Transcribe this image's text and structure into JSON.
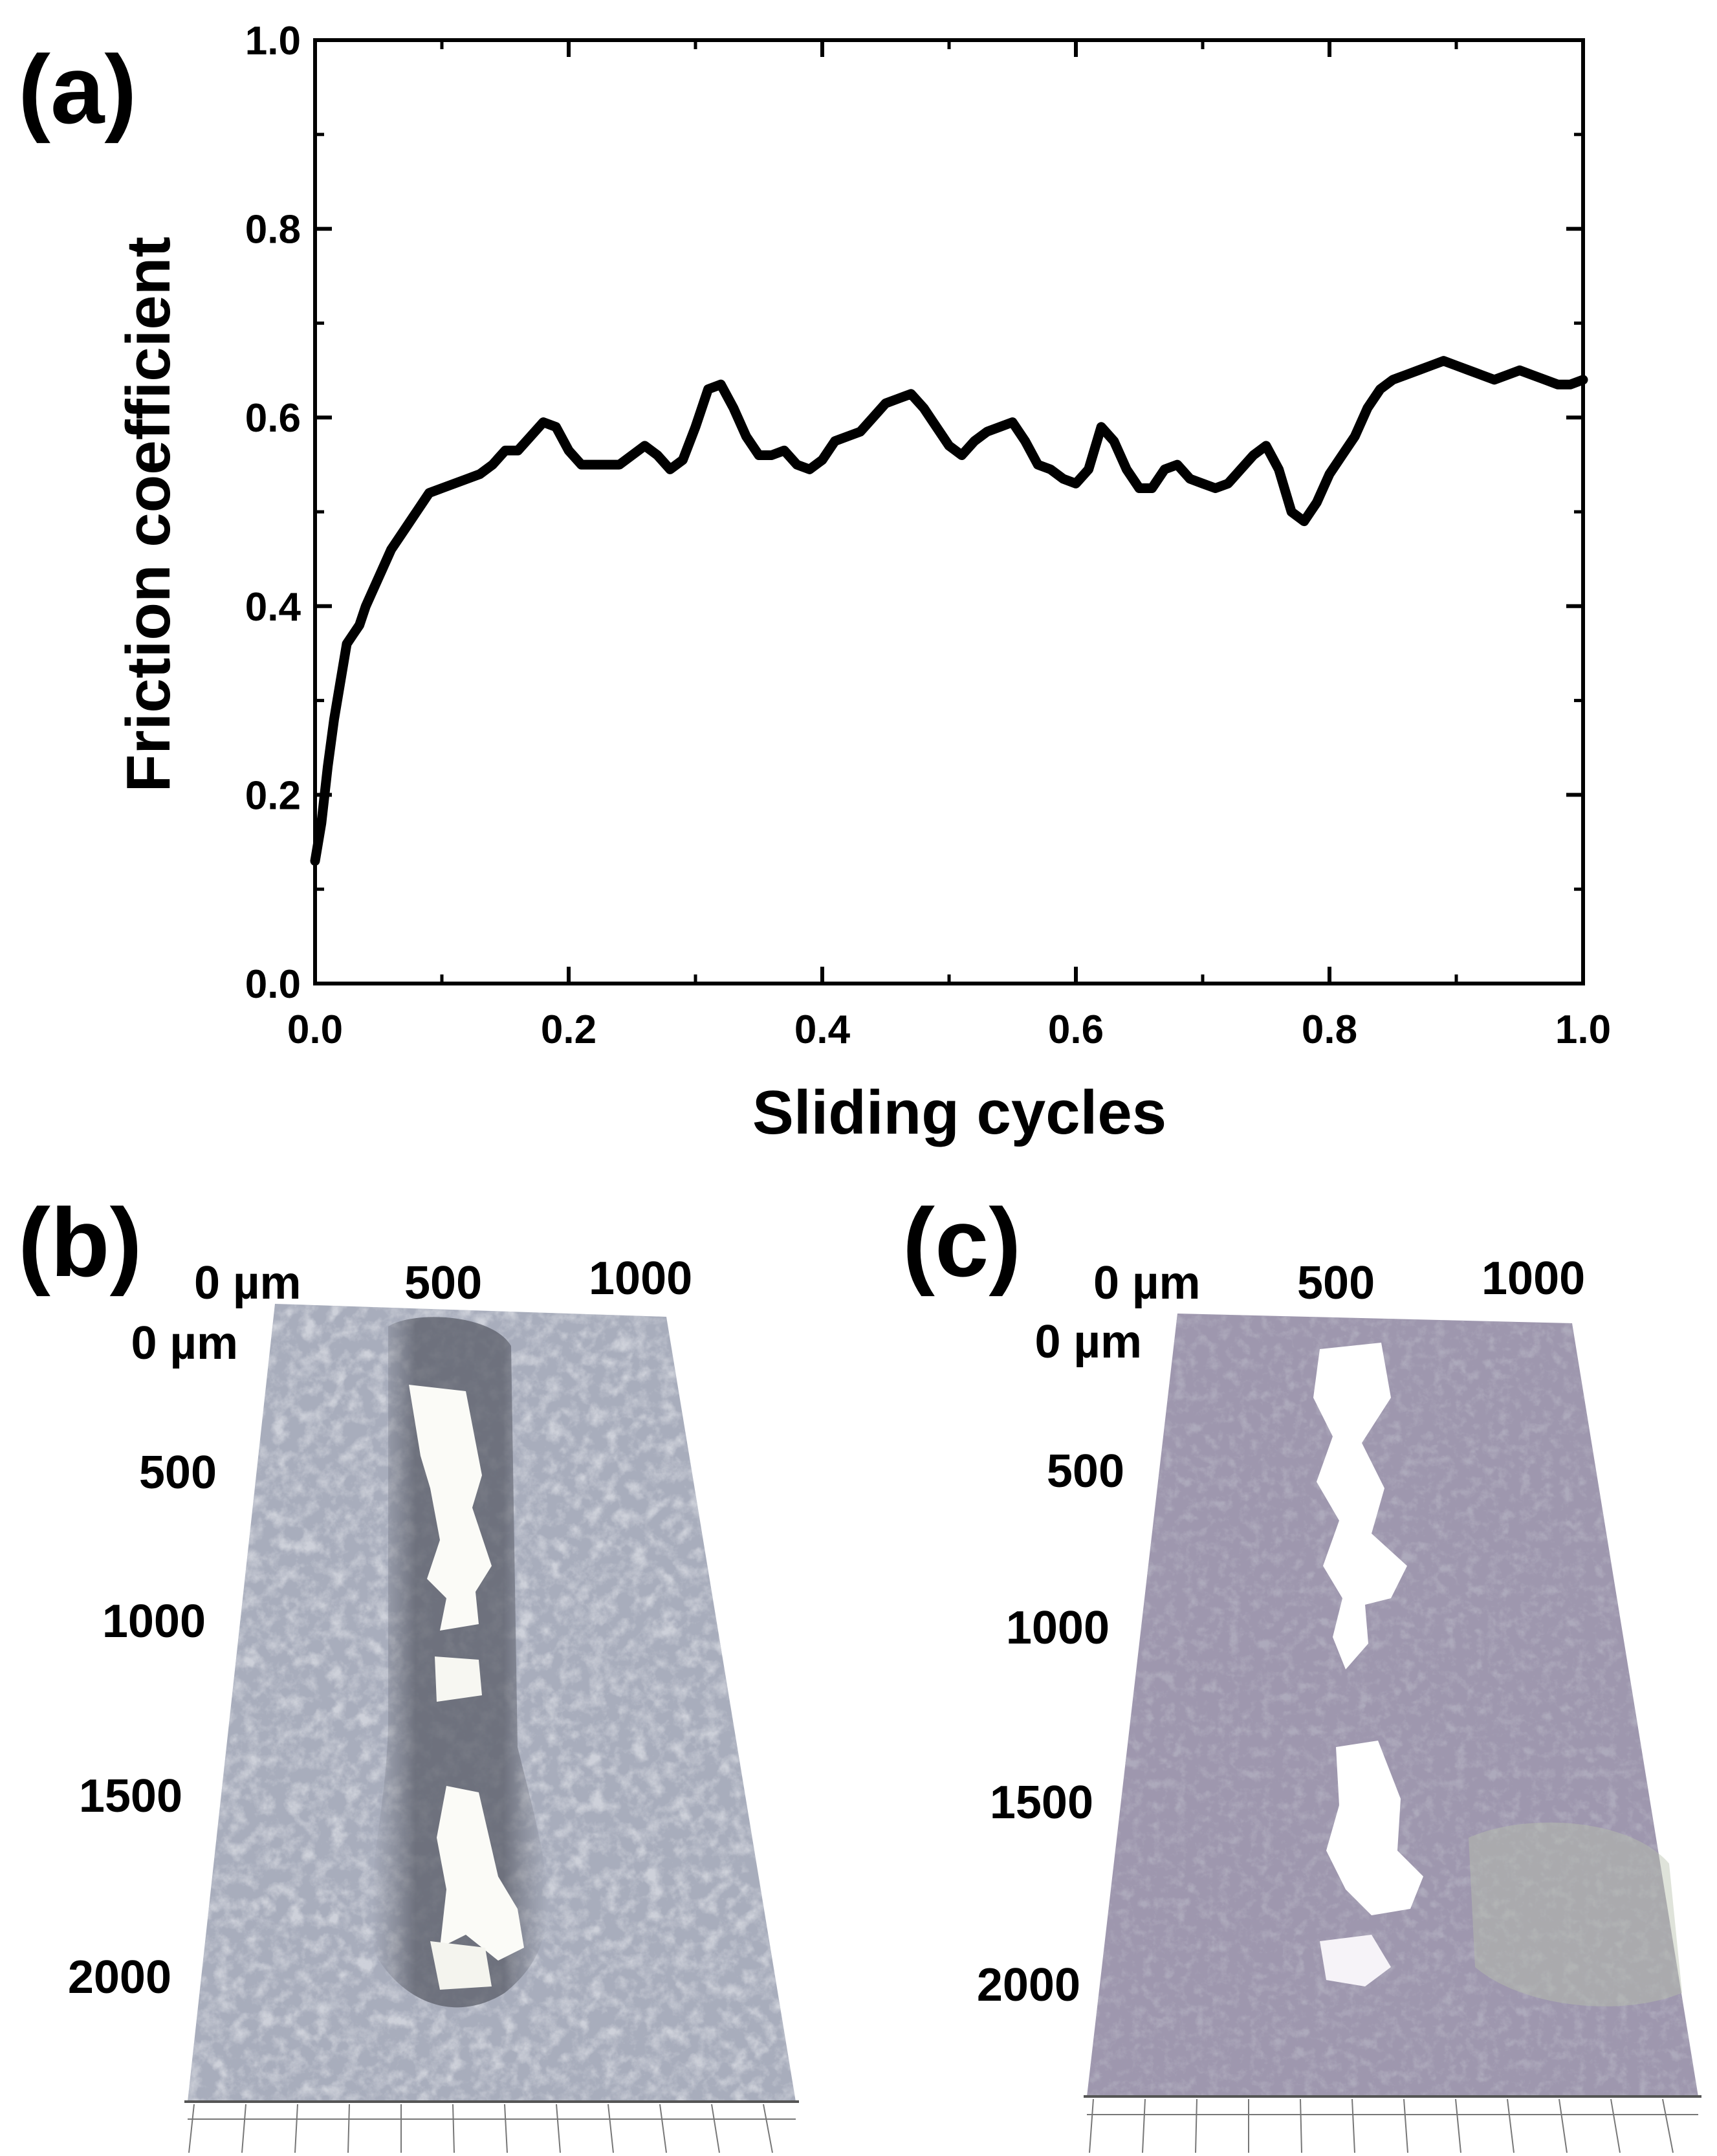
{
  "figure": {
    "panels": [
      {
        "label": "(a)"
      },
      {
        "label": "(b)"
      },
      {
        "label": "(c)"
      }
    ]
  },
  "chart_data": {
    "type": "line",
    "title": "",
    "xlabel": "Sliding cycles",
    "ylabel": "Friction coefficient",
    "xlim": [
      0.0,
      1.0
    ],
    "ylim": [
      0.0,
      1.0
    ],
    "xticks": [
      "0.0",
      "0.2",
      "0.4",
      "0.6",
      "0.8",
      "1.0"
    ],
    "yticks": [
      "0.0",
      "0.2",
      "0.4",
      "0.6",
      "0.8",
      "1.0"
    ],
    "grid": false,
    "series": [
      {
        "name": "Friction coefficient",
        "color": "#000000",
        "x": [
          0.0,
          0.005,
          0.01,
          0.015,
          0.02,
          0.025,
          0.03,
          0.035,
          0.04,
          0.05,
          0.06,
          0.07,
          0.08,
          0.09,
          0.1,
          0.12,
          0.13,
          0.14,
          0.15,
          0.16,
          0.17,
          0.18,
          0.19,
          0.2,
          0.21,
          0.22,
          0.24,
          0.26,
          0.27,
          0.28,
          0.29,
          0.3,
          0.31,
          0.32,
          0.33,
          0.34,
          0.35,
          0.36,
          0.37,
          0.38,
          0.39,
          0.4,
          0.41,
          0.42,
          0.43,
          0.44,
          0.45,
          0.46,
          0.47,
          0.48,
          0.49,
          0.5,
          0.51,
          0.52,
          0.53,
          0.54,
          0.55,
          0.56,
          0.57,
          0.58,
          0.59,
          0.6,
          0.61,
          0.62,
          0.63,
          0.64,
          0.65,
          0.66,
          0.67,
          0.68,
          0.69,
          0.7,
          0.71,
          0.72,
          0.73,
          0.74,
          0.75,
          0.76,
          0.77,
          0.78,
          0.79,
          0.8,
          0.81,
          0.82,
          0.83,
          0.84,
          0.85,
          0.86,
          0.87,
          0.88,
          0.89,
          0.9,
          0.91,
          0.92,
          0.93,
          0.94,
          0.95,
          0.96,
          0.97,
          0.98,
          0.99,
          1.0
        ],
        "y": [
          0.13,
          0.17,
          0.23,
          0.28,
          0.32,
          0.36,
          0.37,
          0.38,
          0.4,
          0.43,
          0.46,
          0.48,
          0.5,
          0.52,
          0.525,
          0.535,
          0.54,
          0.55,
          0.565,
          0.565,
          0.58,
          0.595,
          0.59,
          0.565,
          0.55,
          0.55,
          0.55,
          0.57,
          0.56,
          0.545,
          0.555,
          0.59,
          0.63,
          0.635,
          0.61,
          0.58,
          0.56,
          0.56,
          0.565,
          0.55,
          0.545,
          0.555,
          0.575,
          0.58,
          0.585,
          0.6,
          0.615,
          0.62,
          0.625,
          0.61,
          0.59,
          0.57,
          0.56,
          0.575,
          0.585,
          0.59,
          0.595,
          0.575,
          0.55,
          0.545,
          0.535,
          0.53,
          0.545,
          0.59,
          0.575,
          0.545,
          0.525,
          0.525,
          0.545,
          0.55,
          0.535,
          0.53,
          0.525,
          0.53,
          0.545,
          0.56,
          0.57,
          0.545,
          0.5,
          0.49,
          0.51,
          0.54,
          0.56,
          0.58,
          0.61,
          0.63,
          0.64,
          0.645,
          0.65,
          0.655,
          0.66,
          0.655,
          0.65,
          0.645,
          0.64,
          0.645,
          0.65,
          0.645,
          0.64,
          0.635,
          0.635,
          0.64
        ]
      }
    ]
  },
  "micrographs": [
    {
      "panel": "(b)",
      "x_axis_labels": [
        "0 µm",
        "500",
        "1000"
      ],
      "y_axis_labels": [
        "0 µm",
        "500",
        "1000",
        "1500",
        "2000"
      ]
    },
    {
      "panel": "(c)",
      "x_axis_labels": [
        "0 µm",
        "500",
        "1000"
      ],
      "y_axis_labels": [
        "0 µm",
        "500",
        "1000",
        "1500",
        "2000"
      ]
    }
  ]
}
